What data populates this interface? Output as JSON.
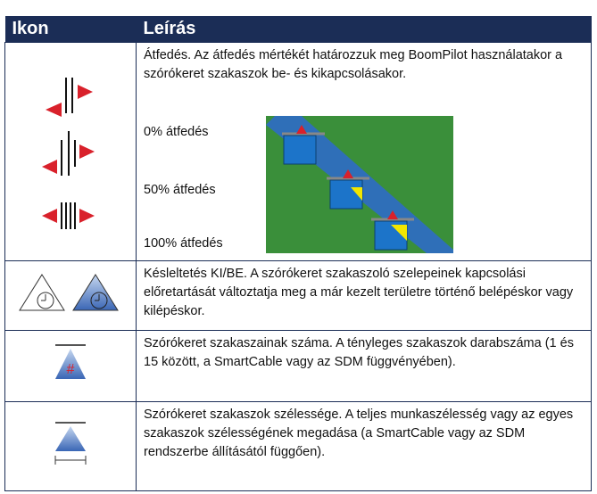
{
  "table": {
    "header": [
      "Ikon",
      "Leírás"
    ],
    "rows": [
      {
        "description": "Átfedés. Az átfedés mértékét határozzuk meg BoomPilot használatakor a szórókeret szakaszok be- és kikapcsolásakor.",
        "options": [
          "0% átfedés",
          "50% átfedés",
          "100% átfedés"
        ]
      },
      {
        "description": "Késleltetés KI/BE. A szórókeret szakaszoló szelepeinek kapcsolási előretartását változtatja meg a már kezelt területre történő belépéskor vagy kilépéskor."
      },
      {
        "description": "Szórókeret szakaszainak száma. A tényleges szakaszok darabszáma (1 és 15 között, a SmartCable vagy az SDM függvényében)."
      },
      {
        "description": "Szórókeret szakaszok szélessége. A teljes munkaszélesség vagy az egyes szakaszok szélességének megadása (a SmartCable vagy az SDM rendszerbe állításától függően)."
      }
    ]
  }
}
